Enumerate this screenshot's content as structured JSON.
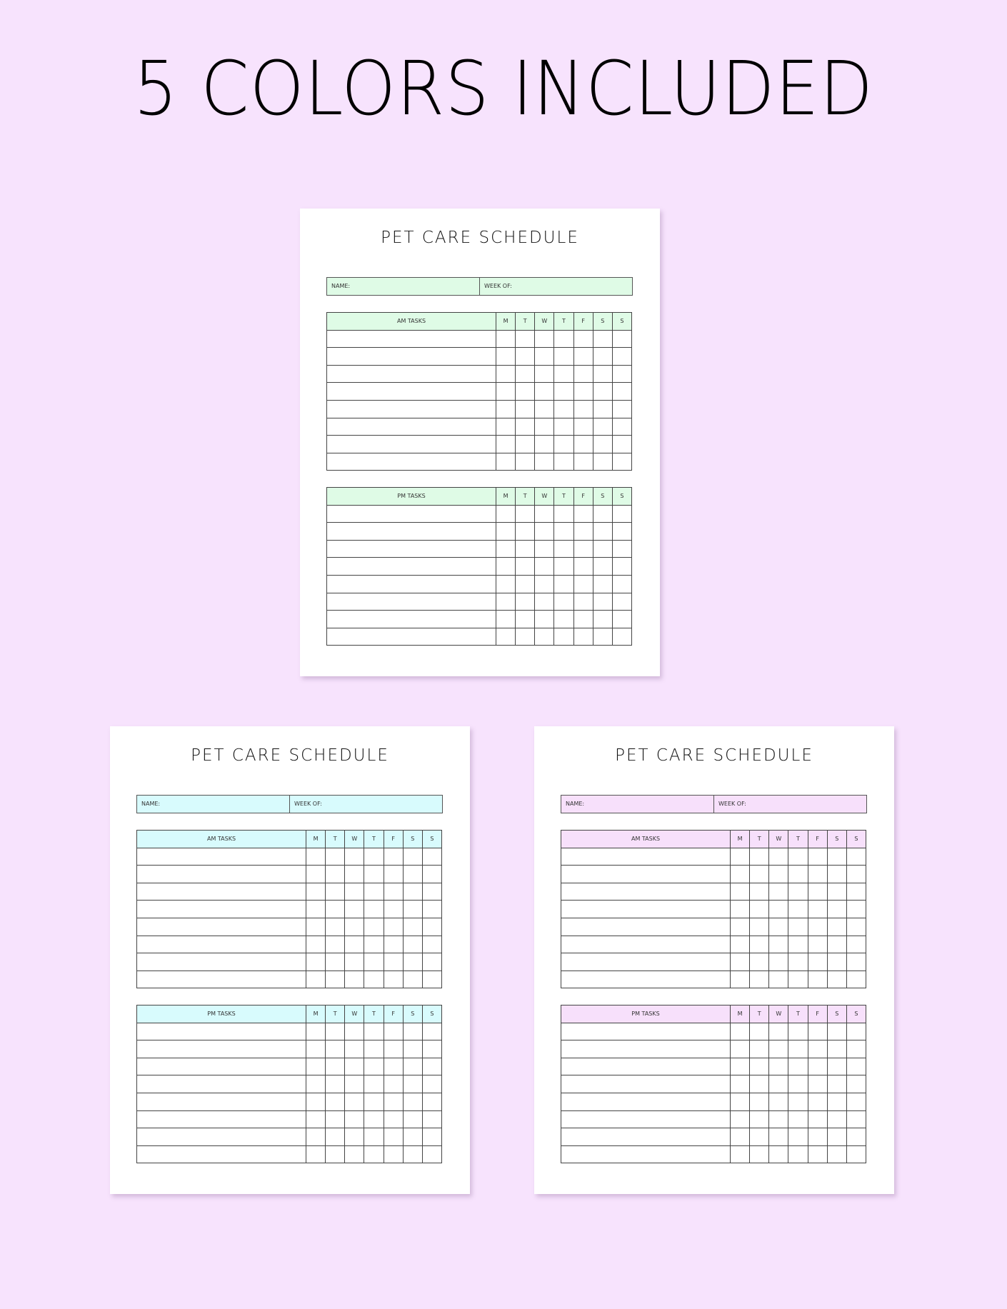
{
  "headline": "5 COLORS INCLUDED",
  "schedule": {
    "title": "PET CARE SCHEDULE",
    "name_label": "NAME:",
    "week_label": "WEEK OF:",
    "am_label": "AM TASKS",
    "pm_label": "PM TASKS",
    "days": [
      "M",
      "T",
      "W",
      "T",
      "F",
      "S",
      "S"
    ],
    "rows_per_table": 8
  },
  "variants": [
    {
      "color": "#dffbe6"
    },
    {
      "color": "#d8fbfd"
    },
    {
      "color": "#f7e0fb"
    }
  ]
}
